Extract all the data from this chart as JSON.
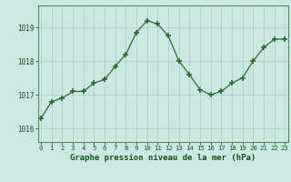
{
  "x": [
    0,
    1,
    2,
    3,
    4,
    5,
    6,
    7,
    8,
    9,
    10,
    11,
    12,
    13,
    14,
    15,
    16,
    17,
    18,
    19,
    20,
    21,
    22,
    23
  ],
  "y": [
    1016.3,
    1016.8,
    1016.9,
    1017.1,
    1017.1,
    1017.35,
    1017.45,
    1017.85,
    1018.2,
    1018.85,
    1019.2,
    1019.1,
    1018.75,
    1018.0,
    1017.6,
    1017.15,
    1017.0,
    1017.1,
    1017.35,
    1017.5,
    1018.0,
    1018.4,
    1018.65,
    1018.65
  ],
  "line_color": "#2d6a2d",
  "marker": "+",
  "marker_size": 4,
  "marker_lw": 1.2,
  "background_color": "#cce8e5",
  "grid_color": "#aec8c5",
  "xlabel": "Graphe pression niveau de la mer (hPa)",
  "xlabel_fontsize": 6.5,
  "ylabel_ticks": [
    1016,
    1017,
    1018,
    1019
  ],
  "ylim": [
    1015.6,
    1019.65
  ],
  "xlim": [
    -0.3,
    23.3
  ],
  "xtick_fontsize": 5.2,
  "ytick_fontsize": 5.5,
  "label_color": "#1a4f1a",
  "spine_color": "#5a8a5a"
}
